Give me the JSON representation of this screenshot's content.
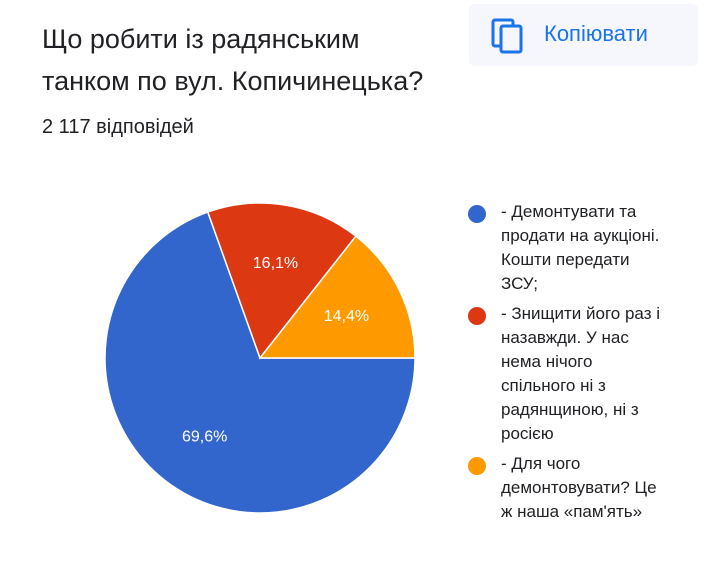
{
  "header": {
    "question": "Що робити із радянським танком по вул. Копичинецька?",
    "responses": "2 117 відповідей",
    "copy_label": "Копіювати",
    "copy_icon": "copy-icon"
  },
  "colors": {
    "accent": "#1a73e8",
    "slice_1": "#3366cc",
    "slice_2": "#dc3912",
    "slice_3": "#ff9900"
  },
  "chart_data": {
    "type": "pie",
    "slices": [
      {
        "label": "- Демонтувати та\nпродати на аукціоні.\nКошти передати\nЗСУ;",
        "value": 69.6,
        "display": "69,6%",
        "color": "#3366cc"
      },
      {
        "label": "- Знищити його раз і\nназавжди. У нас\nнема нічого\nспільного ні з\nрадянщиною, ні з\nросією",
        "value": 16.1,
        "display": "16,1%",
        "color": "#dc3912"
      },
      {
        "label": "- Для чого\nдемонтовувати? Це\nж наша «пам'ять»",
        "value": 14.4,
        "display": "14,4%",
        "color": "#ff9900"
      }
    ],
    "legend_position": "right"
  }
}
